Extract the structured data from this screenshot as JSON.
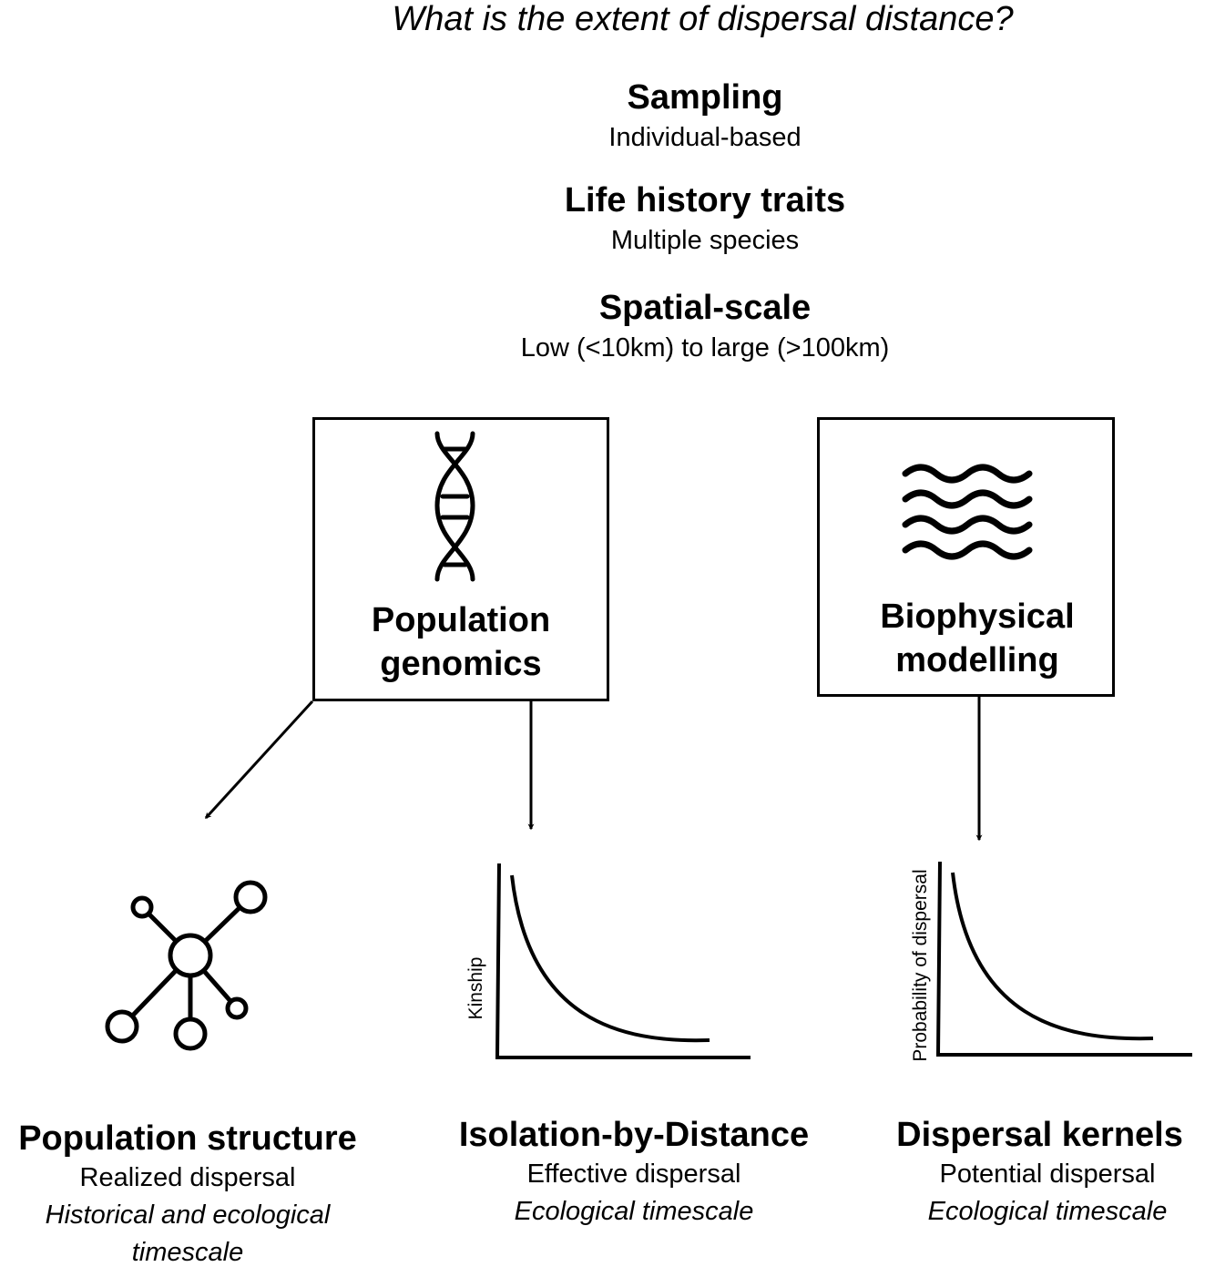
{
  "question": "What is the extent of dispersal distance?",
  "criteria": [
    {
      "title": "Sampling",
      "detail": "Individual-based"
    },
    {
      "title": "Life history traits",
      "detail": "Multiple species"
    },
    {
      "title": "Spatial-scale",
      "detail": "Low (<10km) to large (>100km)"
    }
  ],
  "methods": {
    "genomics": {
      "line1": "Population",
      "line2": "genomics",
      "icon": "dna-icon"
    },
    "biophysical": {
      "line1": "Biophysical",
      "line2": "modelling",
      "icon": "waves-icon"
    }
  },
  "outcomes": [
    {
      "title": "Population structure",
      "type": "Realized dispersal",
      "timescale_line1": "Historical and ecological",
      "timescale_line2": "timescale",
      "icon": "network-icon"
    },
    {
      "title": "Isolation-by-Distance",
      "type": "Effective dispersal",
      "timescale_line1": "Ecological timescale",
      "ylabel": "Kinship"
    },
    {
      "title": "Dispersal kernels",
      "type": "Potential dispersal",
      "timescale_line1": "Ecological timescale",
      "ylabel": "Probability of dispersal"
    }
  ]
}
